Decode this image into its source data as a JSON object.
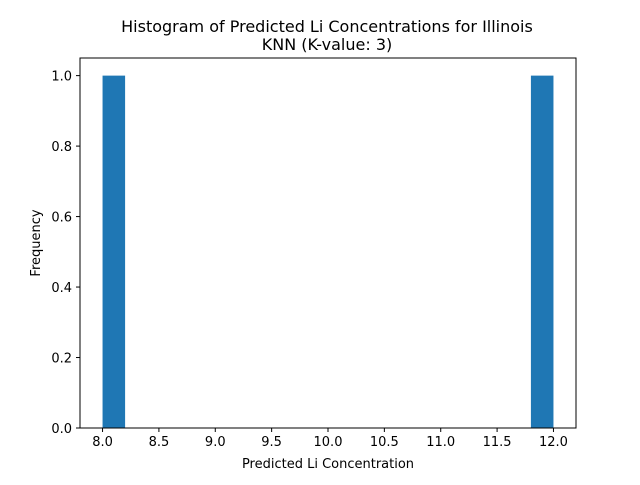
{
  "chart_data": {
    "type": "bar",
    "title": "Histogram of Predicted Li Concentrations for Illinois",
    "subtitle": "KNN (K-value: 3)",
    "xlabel": "Predicted Li Concentration",
    "ylabel": "Frequency",
    "xlim": [
      7.8,
      12.2
    ],
    "ylim": [
      0,
      1.05
    ],
    "x_ticks": [
      "8.0",
      "8.5",
      "9.0",
      "9.5",
      "10.0",
      "10.5",
      "11.0",
      "11.5",
      "12.0"
    ],
    "y_ticks": [
      "0.0",
      "0.2",
      "0.4",
      "0.6",
      "0.8",
      "1.0"
    ],
    "bins": [
      {
        "start": 8.0,
        "end": 8.2,
        "count": 1
      },
      {
        "start": 11.8,
        "end": 12.0,
        "count": 1
      }
    ],
    "grid": false,
    "bar_color": "#1f77b4"
  }
}
